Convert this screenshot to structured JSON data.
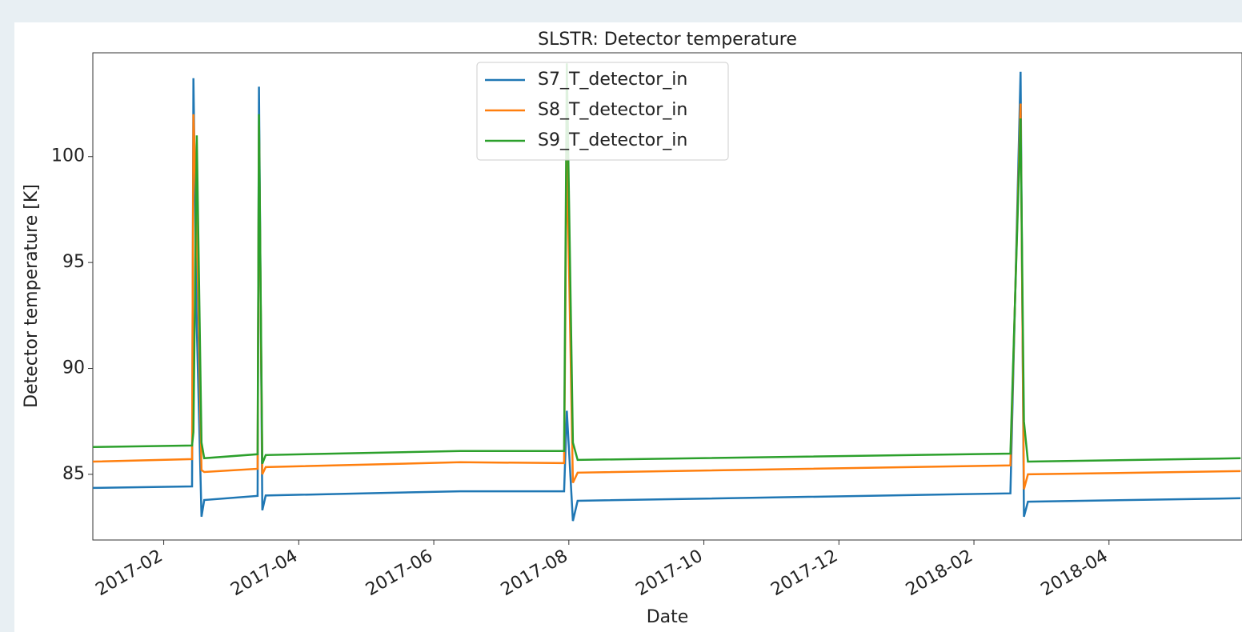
{
  "chart_data": {
    "type": "line",
    "title": "SLSTR: Detector temperature",
    "x_label": "Date",
    "y_label": "Detector temperature [K]",
    "x": [
      -0.05,
      1.42,
      1.44,
      1.49,
      1.56,
      1.6,
      2.39,
      2.41,
      2.46,
      2.51,
      5.39,
      6.93,
      6.97,
      7.06,
      7.13,
      13.54,
      13.69,
      13.74,
      13.8,
      16.95
    ],
    "series": [
      {
        "name": "S7_T_detector_in",
        "color": "#1f77b4",
        "values": [
          84.36,
          84.43,
          103.7,
          92,
          83.0,
          83.79,
          83.98,
          103.3,
          83.3,
          84.0,
          84.2,
          84.2,
          88,
          82.8,
          83.75,
          84.1,
          104.0,
          83.0,
          83.71,
          83.87
        ]
      },
      {
        "name": "S8_T_detector_in",
        "color": "#ff7f0e",
        "values": [
          85.6,
          85.72,
          102,
          97,
          85.2,
          85.11,
          85.26,
          101.5,
          85.0,
          85.34,
          85.57,
          85.53,
          100.5,
          84.6,
          85.08,
          85.42,
          102.5,
          84.3,
          85.0,
          85.15
        ]
      },
      {
        "name": "S9_T_detector_in",
        "color": "#2ca02c",
        "values": [
          86.29,
          86.36,
          87,
          101,
          86.5,
          85.76,
          85.95,
          102,
          85.5,
          85.91,
          86.1,
          86.1,
          104.4,
          86.5,
          85.68,
          85.98,
          101.8,
          87.5,
          85.6,
          85.76
        ]
      }
    ],
    "xlim": [
      -0.05,
      16.97
    ],
    "xticks": [
      {
        "value": 1,
        "label": "2017-02"
      },
      {
        "value": 3,
        "label": "2017-04"
      },
      {
        "value": 5,
        "label": "2017-06"
      },
      {
        "value": 7,
        "label": "2017-08"
      },
      {
        "value": 9,
        "label": "2017-10"
      },
      {
        "value": 11,
        "label": "2017-12"
      },
      {
        "value": 13,
        "label": "2018-02"
      },
      {
        "value": 15,
        "label": "2018-04"
      }
    ],
    "ylim": [
      81.9,
      104.9
    ],
    "yticks": [
      85,
      90,
      95,
      100
    ],
    "legend": "upper center",
    "grid": false
  }
}
